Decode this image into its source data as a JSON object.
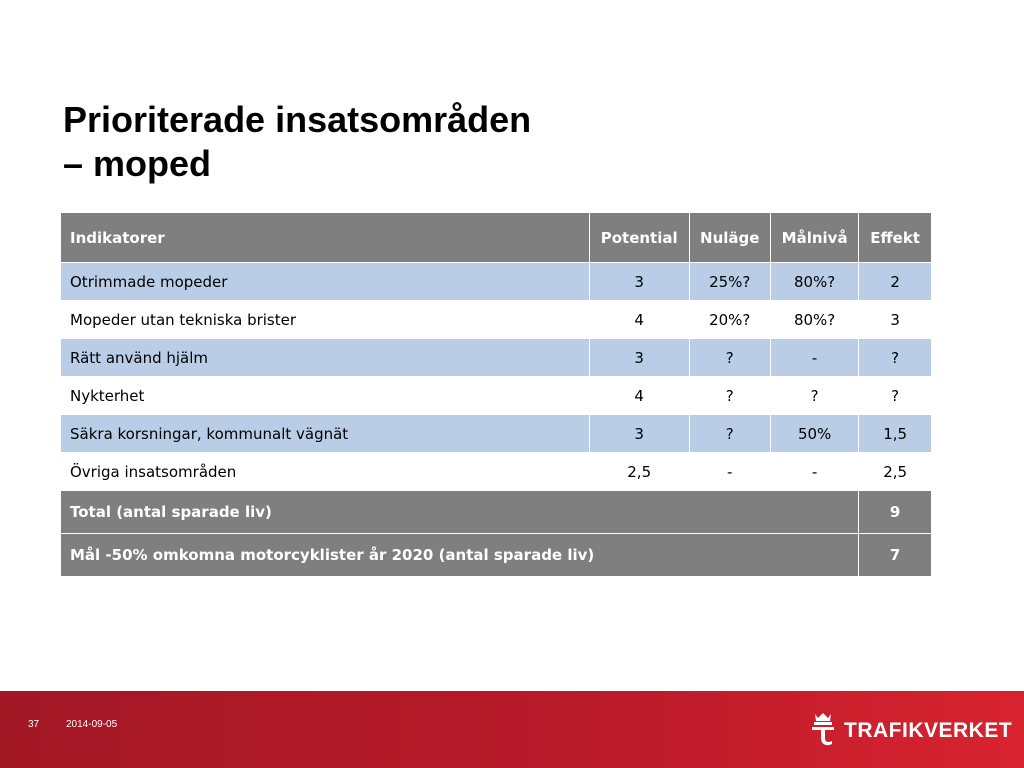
{
  "slide": {
    "title_line1": "Prioriterade insatsområden",
    "title_line2": "– moped"
  },
  "table": {
    "headers": {
      "indicator": "Indikatorer",
      "potential": "Potential",
      "current": "Nuläge",
      "target": "Målnivå",
      "effect": "Effekt"
    },
    "rows": [
      {
        "indicator": "Otrimmade mopeder",
        "potential": "3",
        "current": "25%?",
        "target": "80%?",
        "effect": "2"
      },
      {
        "indicator": "Mopeder utan tekniska brister",
        "potential": "4",
        "current": "20%?",
        "target": "80%?",
        "effect": "3"
      },
      {
        "indicator": "Rätt använd hjälm",
        "potential": "3",
        "current": "?",
        "target": "-",
        "effect": "?"
      },
      {
        "indicator": "Nykterhet",
        "potential": "4",
        "current": "?",
        "target": "?",
        "effect": "?"
      },
      {
        "indicator": "Säkra korsningar, kommunalt vägnät",
        "potential": "3",
        "current": "?",
        "target": "50%",
        "effect": "1,5"
      },
      {
        "indicator": "Övriga insatsområden",
        "potential": "2,5",
        "current": "-",
        "target": "-",
        "effect": "2,5"
      }
    ],
    "total": {
      "label": "Total (antal sparade liv)",
      "value": "9"
    },
    "goal": {
      "label": "Mål -50% omkomna motorcyklister år 2020 (antal sparade liv)",
      "value": "7"
    }
  },
  "footer": {
    "page_number": "37",
    "date": "2014-09-05",
    "logo_text": "TRAFIKVERKET",
    "logo_icon": "crown-t-logo-icon"
  },
  "colors": {
    "header_bg": "#7f7f7f",
    "row_band": "#b9cde6",
    "footer_red": "#b81a2a"
  }
}
